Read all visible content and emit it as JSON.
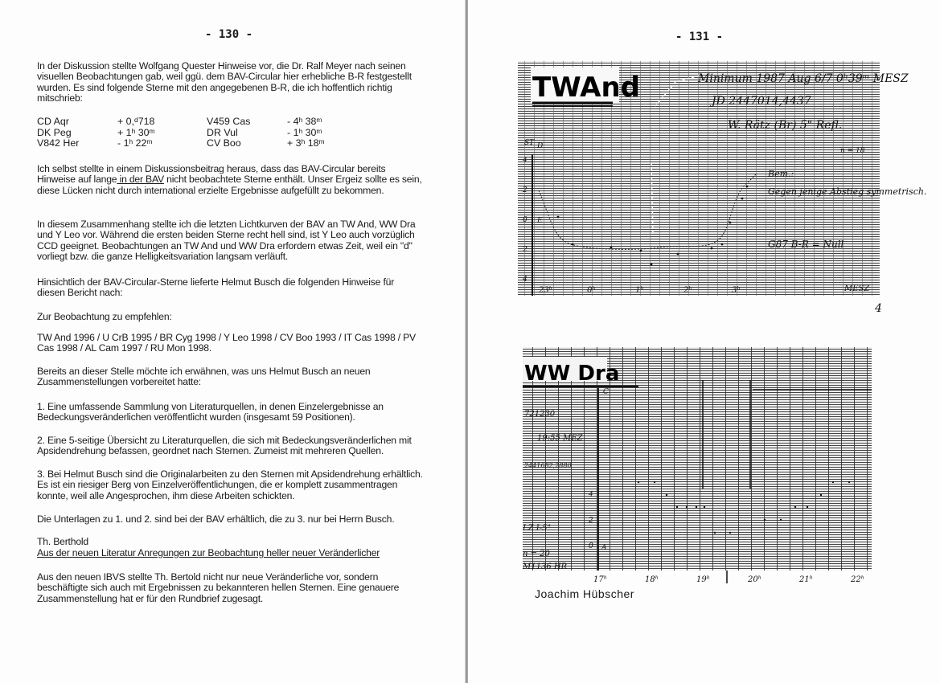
{
  "left_page": {
    "page_number": "- 130 -",
    "para1": "In der Diskussion stellte  Wolfgang Quester  Hinweise vor, die  Dr. Ralf Meyer  nach seinen  visuellen Beobachtungen gab, weil ggü. dem BAV-Circular hier erhebliche B-R festgestellt wurden. Es sind folgende Sterne  mit den angegebenen B-R, die ich hoffentlich richtig mitschrieb:",
    "stars": [
      {
        "star1": "CD Aqr",
        "br1": "+ 0,ᵈ718",
        "star2": "V459 Cas",
        "br2": "- 4ʰ 38ᵐ"
      },
      {
        "star1": "DK Peg",
        "br1": "+ 1ʰ 30ᵐ",
        "star2": "DR Vul",
        "br2": "- 1ʰ 30ᵐ"
      },
      {
        "star1": "V842 Her",
        "br1": "- 1ʰ 22ᵐ",
        "star2": "CV Boo",
        "br2": "+ 3ʰ 18ᵐ"
      }
    ],
    "para2_a": "Ich selbst  stellte in einem Diskussionsbeitrag heraus, dass das BAV-Circular  bereits Hinweise auf  lange",
    "para2_u": " in der BAV",
    "para2_b": " nicht beobachtete Sterne enthält. Unser Ergeiz sollte es sein, diese Lücken nicht durch international erzielte Ergebnisse aufgefüllt zu bekommen.",
    "para3": "In diesem Zusammenhang stellte ich die letzten Lichtkurven der BAV an TW And, WW Dra und Y Leo vor. Während die ersten beiden Sterne recht hell sind, ist  Y Leo auch vorzüglich CCD geeignet. Beobachtungen an TW And und WW Dra erfordern etwas Zeit, weil ein \"d\" vorliegt bzw. die ganze Helligkeitsvariation langsam verläuft.",
    "para4": "Hinsichtlich der  BAV-Circular-Sterne lieferte Helmut Busch die folgenden Hinweise für diesen Bericht nach:",
    "para5": "Zur Beobachtung zu empfehlen:",
    "para6": "TW And 1996 / U CrB 1995 / BR Cyg 1998 / Y Leo 1998 / CV Boo 1993 / IT Cas 1998 / PV Cas 1998 / AL Cam 1997 / RU Mon 1998.",
    "para7": "Bereits an dieser Stelle möchte ich erwähnen, was uns Helmut Busch an neuen Zusammenstellungen vorbereitet hatte:",
    "para8": "1. Eine umfassende Sammlung von Literaturquellen, in denen Einzelergebnisse an Bedeckungsveränderlichen veröffentlicht wurden (insgesamt 59 Positionen).",
    "para9": "2. Eine 5-seitige Übersicht  zu Literaturquellen, die sich mit Bedeckungsveränderlichen mit Apsidendrehung befassen, geordnet nach Sternen. Zumeist mit mehreren Quellen.",
    "para10": "3. Bei Helmut Busch sind die Originalarbeiten zu den Sternen mit Apsidendrehung erhältlich. Es ist ein riesiger Berg von Einzelveröffentlichungen, die er komplett zusammentragen konnte, weil alle Angesprochen, ihm diese Arbeiten schickten.",
    "para11": "Die Unterlagen zu 1. und 2. sind bei der BAV erhältlich, die zu 3. nur bei Herrn Busch.",
    "author": "Th. Berthold",
    "heading": "Aus der neuen Literatur Anregungen zur Beobachtung heller neuer Veränderlicher",
    "para12": "Aus den neuen IBVS stellte Th. Bertold nicht nur neue Veränderliche vor, sondern beschäftigte sich auch mit Ergebnissen zu bekannteren hellen Sternen. Eine genauere Zusammenstellung hat er für den Rundbrief zugesagt."
  },
  "right_page": {
    "page_number": "- 131 -",
    "chart1": {
      "title": "TWAnd",
      "note1": "Minimum 1987 Aug 6/7 0ʰ39ᵐ MESZ",
      "note2": "JD 2447014,4437",
      "note3": "W. Rätz (Br) 5\" Refl.",
      "note4": "n = 18",
      "note5": "Bem.:",
      "note6": "Gegen jenige Abstieg symmetrisch.",
      "note7": "G87 B-R = Null",
      "y_ticks": [
        "4",
        "2",
        "0",
        "2",
        "4"
      ],
      "y_marks": [
        "D",
        "E",
        "ST"
      ],
      "x_ticks": [
        "23ʰ",
        "0ʰ",
        "1ʰ",
        "2ʰ",
        "3ʰ"
      ],
      "x_unit": "MESZ",
      "corner_mark": "4"
    },
    "chart2": {
      "title": "WW Dra",
      "note1": "721230",
      "note2": "19:55 MEZ",
      "note3": "2441682,2880",
      "note4": "LZ  I-5\"",
      "note5": "n = 20",
      "note6": "M1136 HR",
      "y_ticks": [
        "4",
        "2",
        "0"
      ],
      "y_marks": [
        "C",
        "A"
      ],
      "x_ticks": [
        "17ʰ",
        "18ʰ",
        "19ʰ",
        "20ʰ",
        "21ʰ",
        "22ʰ"
      ]
    },
    "caption": "Joachim Hübscher"
  }
}
